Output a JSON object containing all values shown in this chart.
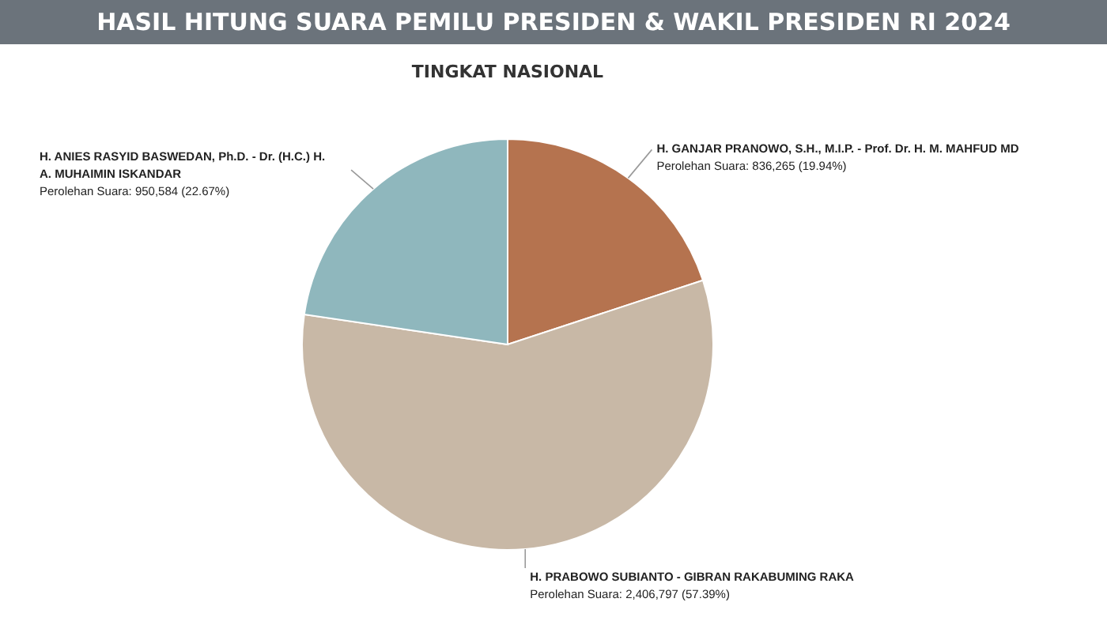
{
  "chart_data": {
    "type": "pie",
    "title": "HASIL HITUNG SUARA PEMILU PRESIDEN & WAKIL PRESIDEN RI 2024",
    "subtitle": "TINGKAT NASIONAL",
    "categories": [
      "H. GANJAR PRANOWO, S.H., M.I.P. - Prof. Dr. H. M. MAHFUD MD",
      "H. PRABOWO SUBIANTO - GIBRAN RAKABUMING RAKA",
      "H. ANIES RASYID BASWEDAN, Ph.D. - Dr. (H.C.) H. A. MUHAIMIN ISKANDAR"
    ],
    "values": [
      836265,
      2406797,
      950584
    ],
    "colors": [
      "#b5734f",
      "#c8b8a6",
      "#8fb7bd"
    ],
    "value_labels": [
      "Perolehan Suara: 836,265 (19.94%)",
      "Perolehan Suara: 2,406,797 (57.39%)",
      "Perolehan Suara: 950,584 (22.67%)"
    ]
  }
}
